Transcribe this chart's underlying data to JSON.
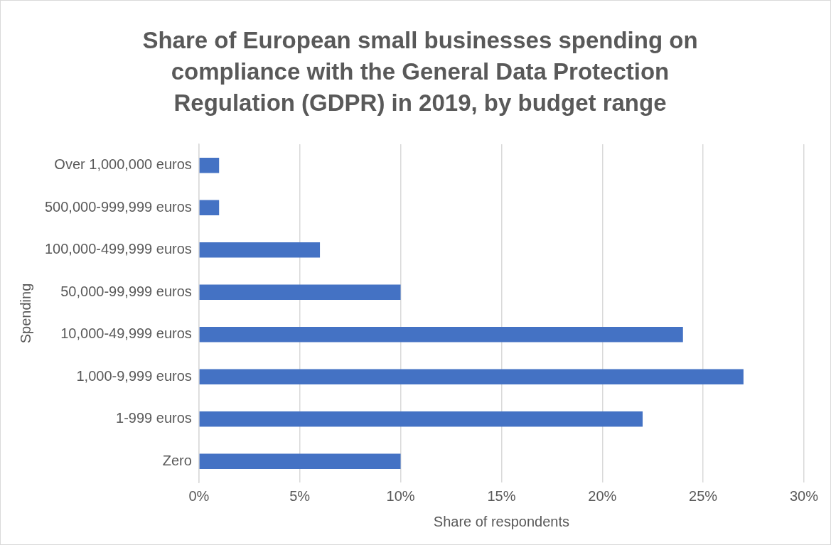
{
  "chart_data": {
    "type": "bar",
    "orientation": "horizontal",
    "title": "Share of European small businesses spending on compliance with the General Data Protection Regulation (GDPR) in 2019, by budget range",
    "xlabel": "Share of respondents",
    "ylabel": "Spending",
    "categories": [
      "Over 1,000,000 euros",
      "500,000-999,999 euros",
      "100,000-499,999 euros",
      "50,000-99,999 euros",
      "10,000-49,999 euros",
      "1,000-9,999 euros",
      "1-999 euros",
      "Zero"
    ],
    "values": [
      1,
      1,
      6,
      10,
      24,
      27,
      22,
      10
    ],
    "color": "#4472c4",
    "xlim": [
      0,
      30
    ],
    "xticks": [
      {
        "value": 0,
        "label": "0%"
      },
      {
        "value": 5,
        "label": "5%"
      },
      {
        "value": 10,
        "label": "10%"
      },
      {
        "value": 15,
        "label": "15%"
      },
      {
        "value": 20,
        "label": "20%"
      },
      {
        "value": 25,
        "label": "25%"
      },
      {
        "value": 30,
        "label": "30%"
      }
    ],
    "grid": "x",
    "legend": false
  }
}
